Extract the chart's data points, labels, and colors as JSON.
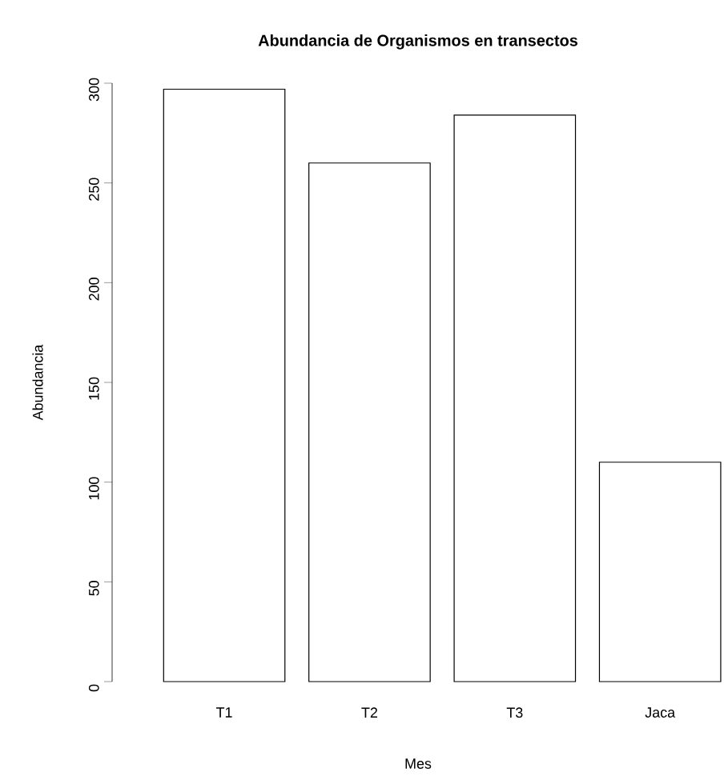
{
  "chart_data": {
    "type": "bar",
    "title": "Abundancia de Organismos en transectos",
    "xlabel": "Mes",
    "ylabel": "Abundancia",
    "categories": [
      "T1",
      "T2",
      "T3",
      "Jaca"
    ],
    "values": [
      297,
      260,
      284,
      110
    ],
    "color": "#ffffff",
    "ylim": [
      0,
      300
    ],
    "yticks": [
      0,
      50,
      100,
      150,
      200,
      250,
      300
    ]
  }
}
